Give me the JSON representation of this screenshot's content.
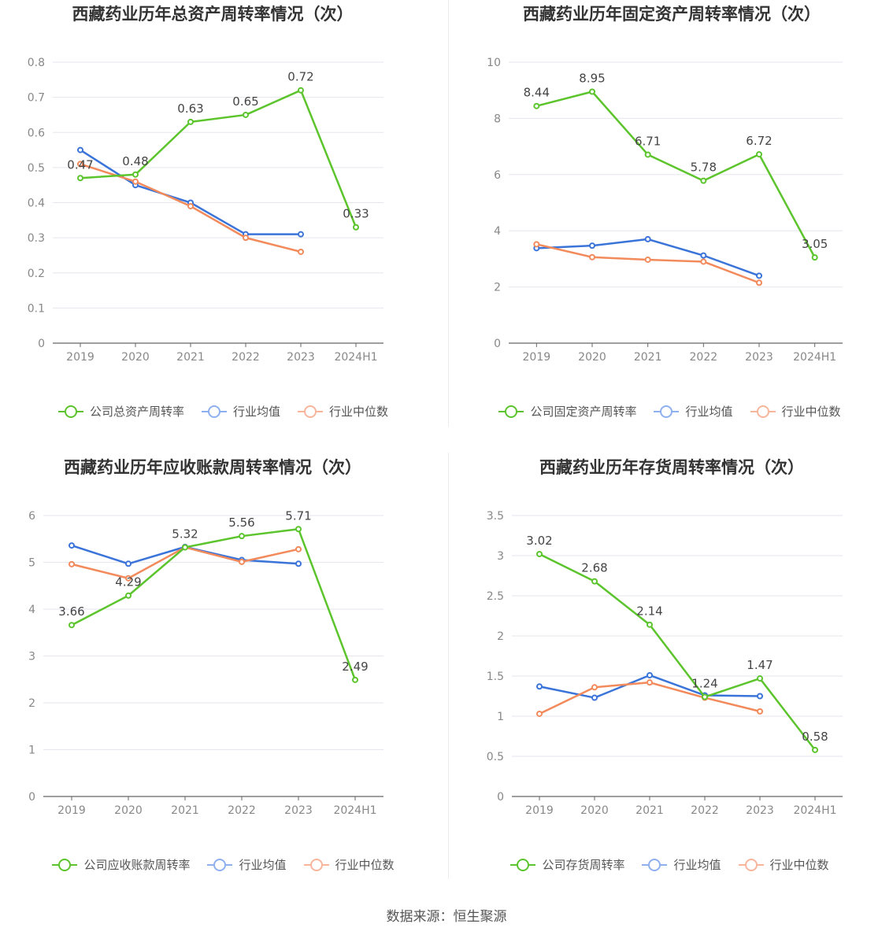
{
  "source": "数据来源：恒生聚源",
  "colors": {
    "company": "#5cc42c",
    "avg": "#3b74d9",
    "median": "#f28a5b",
    "avg_legend": "#8fb0ef",
    "median_legend": "#f7b59a"
  },
  "chart_data": [
    {
      "type": "line",
      "title": "西藏药业历年总资产周转率情况（次）",
      "categories": [
        "2019",
        "2020",
        "2021",
        "2022",
        "2023",
        "2024H1"
      ],
      "ylim": [
        0,
        0.8
      ],
      "yticks": [
        0,
        0.1,
        0.2,
        0.3,
        0.4,
        0.5,
        0.6,
        0.7,
        0.8
      ],
      "ytick_labels": [
        "0",
        "0.1",
        "0.2",
        "0.3",
        "0.4",
        "0.5",
        "0.6",
        "0.7",
        "0.8"
      ],
      "legend_position": "bottom",
      "series": [
        {
          "name": "公司总资产周转率",
          "values": [
            0.47,
            0.48,
            0.63,
            0.65,
            0.72,
            0.33
          ],
          "labels": [
            "0.47",
            "0.48",
            "0.63",
            "0.65",
            "0.72",
            "0.33"
          ]
        },
        {
          "name": "行业均值",
          "values": [
            0.55,
            0.45,
            0.4,
            0.31,
            0.31,
            null
          ]
        },
        {
          "name": "行业中位数",
          "values": [
            0.51,
            0.46,
            0.39,
            0.3,
            0.26,
            null
          ]
        }
      ]
    },
    {
      "type": "line",
      "title": "西藏药业历年固定资产周转率情况（次）",
      "categories": [
        "2019",
        "2020",
        "2021",
        "2022",
        "2023",
        "2024H1"
      ],
      "ylim": [
        0,
        10
      ],
      "yticks": [
        0,
        2,
        4,
        6,
        8,
        10
      ],
      "ytick_labels": [
        "0",
        "2",
        "4",
        "6",
        "8",
        "10"
      ],
      "legend_position": "bottom",
      "series": [
        {
          "name": "公司固定资产周转率",
          "values": [
            8.44,
            8.95,
            6.71,
            5.78,
            6.72,
            3.05
          ],
          "labels": [
            "8.44",
            "8.95",
            "6.71",
            "5.78",
            "6.72",
            "3.05"
          ]
        },
        {
          "name": "行业均值",
          "values": [
            3.38,
            3.47,
            3.7,
            3.12,
            2.4,
            null
          ]
        },
        {
          "name": "行业中位数",
          "values": [
            3.52,
            3.06,
            2.97,
            2.9,
            2.15,
            null
          ]
        }
      ]
    },
    {
      "type": "line",
      "title": "西藏药业历年应收账款周转率情况（次）",
      "categories": [
        "2019",
        "2020",
        "2021",
        "2022",
        "2023",
        "2024H1"
      ],
      "ylim": [
        0,
        6
      ],
      "yticks": [
        0,
        1,
        2,
        3,
        4,
        5,
        6
      ],
      "ytick_labels": [
        "0",
        "1",
        "2",
        "3",
        "4",
        "5",
        "6"
      ],
      "legend_position": "bottom",
      "series": [
        {
          "name": "公司应收账款周转率",
          "values": [
            3.66,
            4.29,
            5.32,
            5.56,
            5.71,
            2.49
          ],
          "labels": [
            "3.66",
            "4.29",
            "5.32",
            "5.56",
            "5.71",
            "2.49"
          ]
        },
        {
          "name": "行业均值",
          "values": [
            5.36,
            4.97,
            5.33,
            5.05,
            4.97,
            null
          ]
        },
        {
          "name": "行业中位数",
          "values": [
            4.96,
            4.66,
            5.32,
            5.01,
            5.28,
            null
          ]
        }
      ]
    },
    {
      "type": "line",
      "title": "西藏药业历年存货周转率情况（次）",
      "categories": [
        "2019",
        "2020",
        "2021",
        "2022",
        "2023",
        "2024H1"
      ],
      "ylim": [
        0,
        3.5
      ],
      "yticks": [
        0,
        0.5,
        1,
        1.5,
        2,
        2.5,
        3,
        3.5
      ],
      "ytick_labels": [
        "0",
        "0.5",
        "1",
        "1.5",
        "2",
        "2.5",
        "3",
        "3.5"
      ],
      "legend_position": "bottom",
      "series": [
        {
          "name": "公司存货周转率",
          "values": [
            3.02,
            2.68,
            2.14,
            1.24,
            1.47,
            0.58
          ],
          "labels": [
            "3.02",
            "2.68",
            "2.14",
            "1.24",
            "1.47",
            "0.58"
          ]
        },
        {
          "name": "行业均值",
          "values": [
            1.37,
            1.23,
            1.51,
            1.26,
            1.25,
            null
          ]
        },
        {
          "name": "行业中位数",
          "values": [
            1.03,
            1.36,
            1.42,
            1.23,
            1.06,
            null
          ]
        }
      ]
    }
  ]
}
